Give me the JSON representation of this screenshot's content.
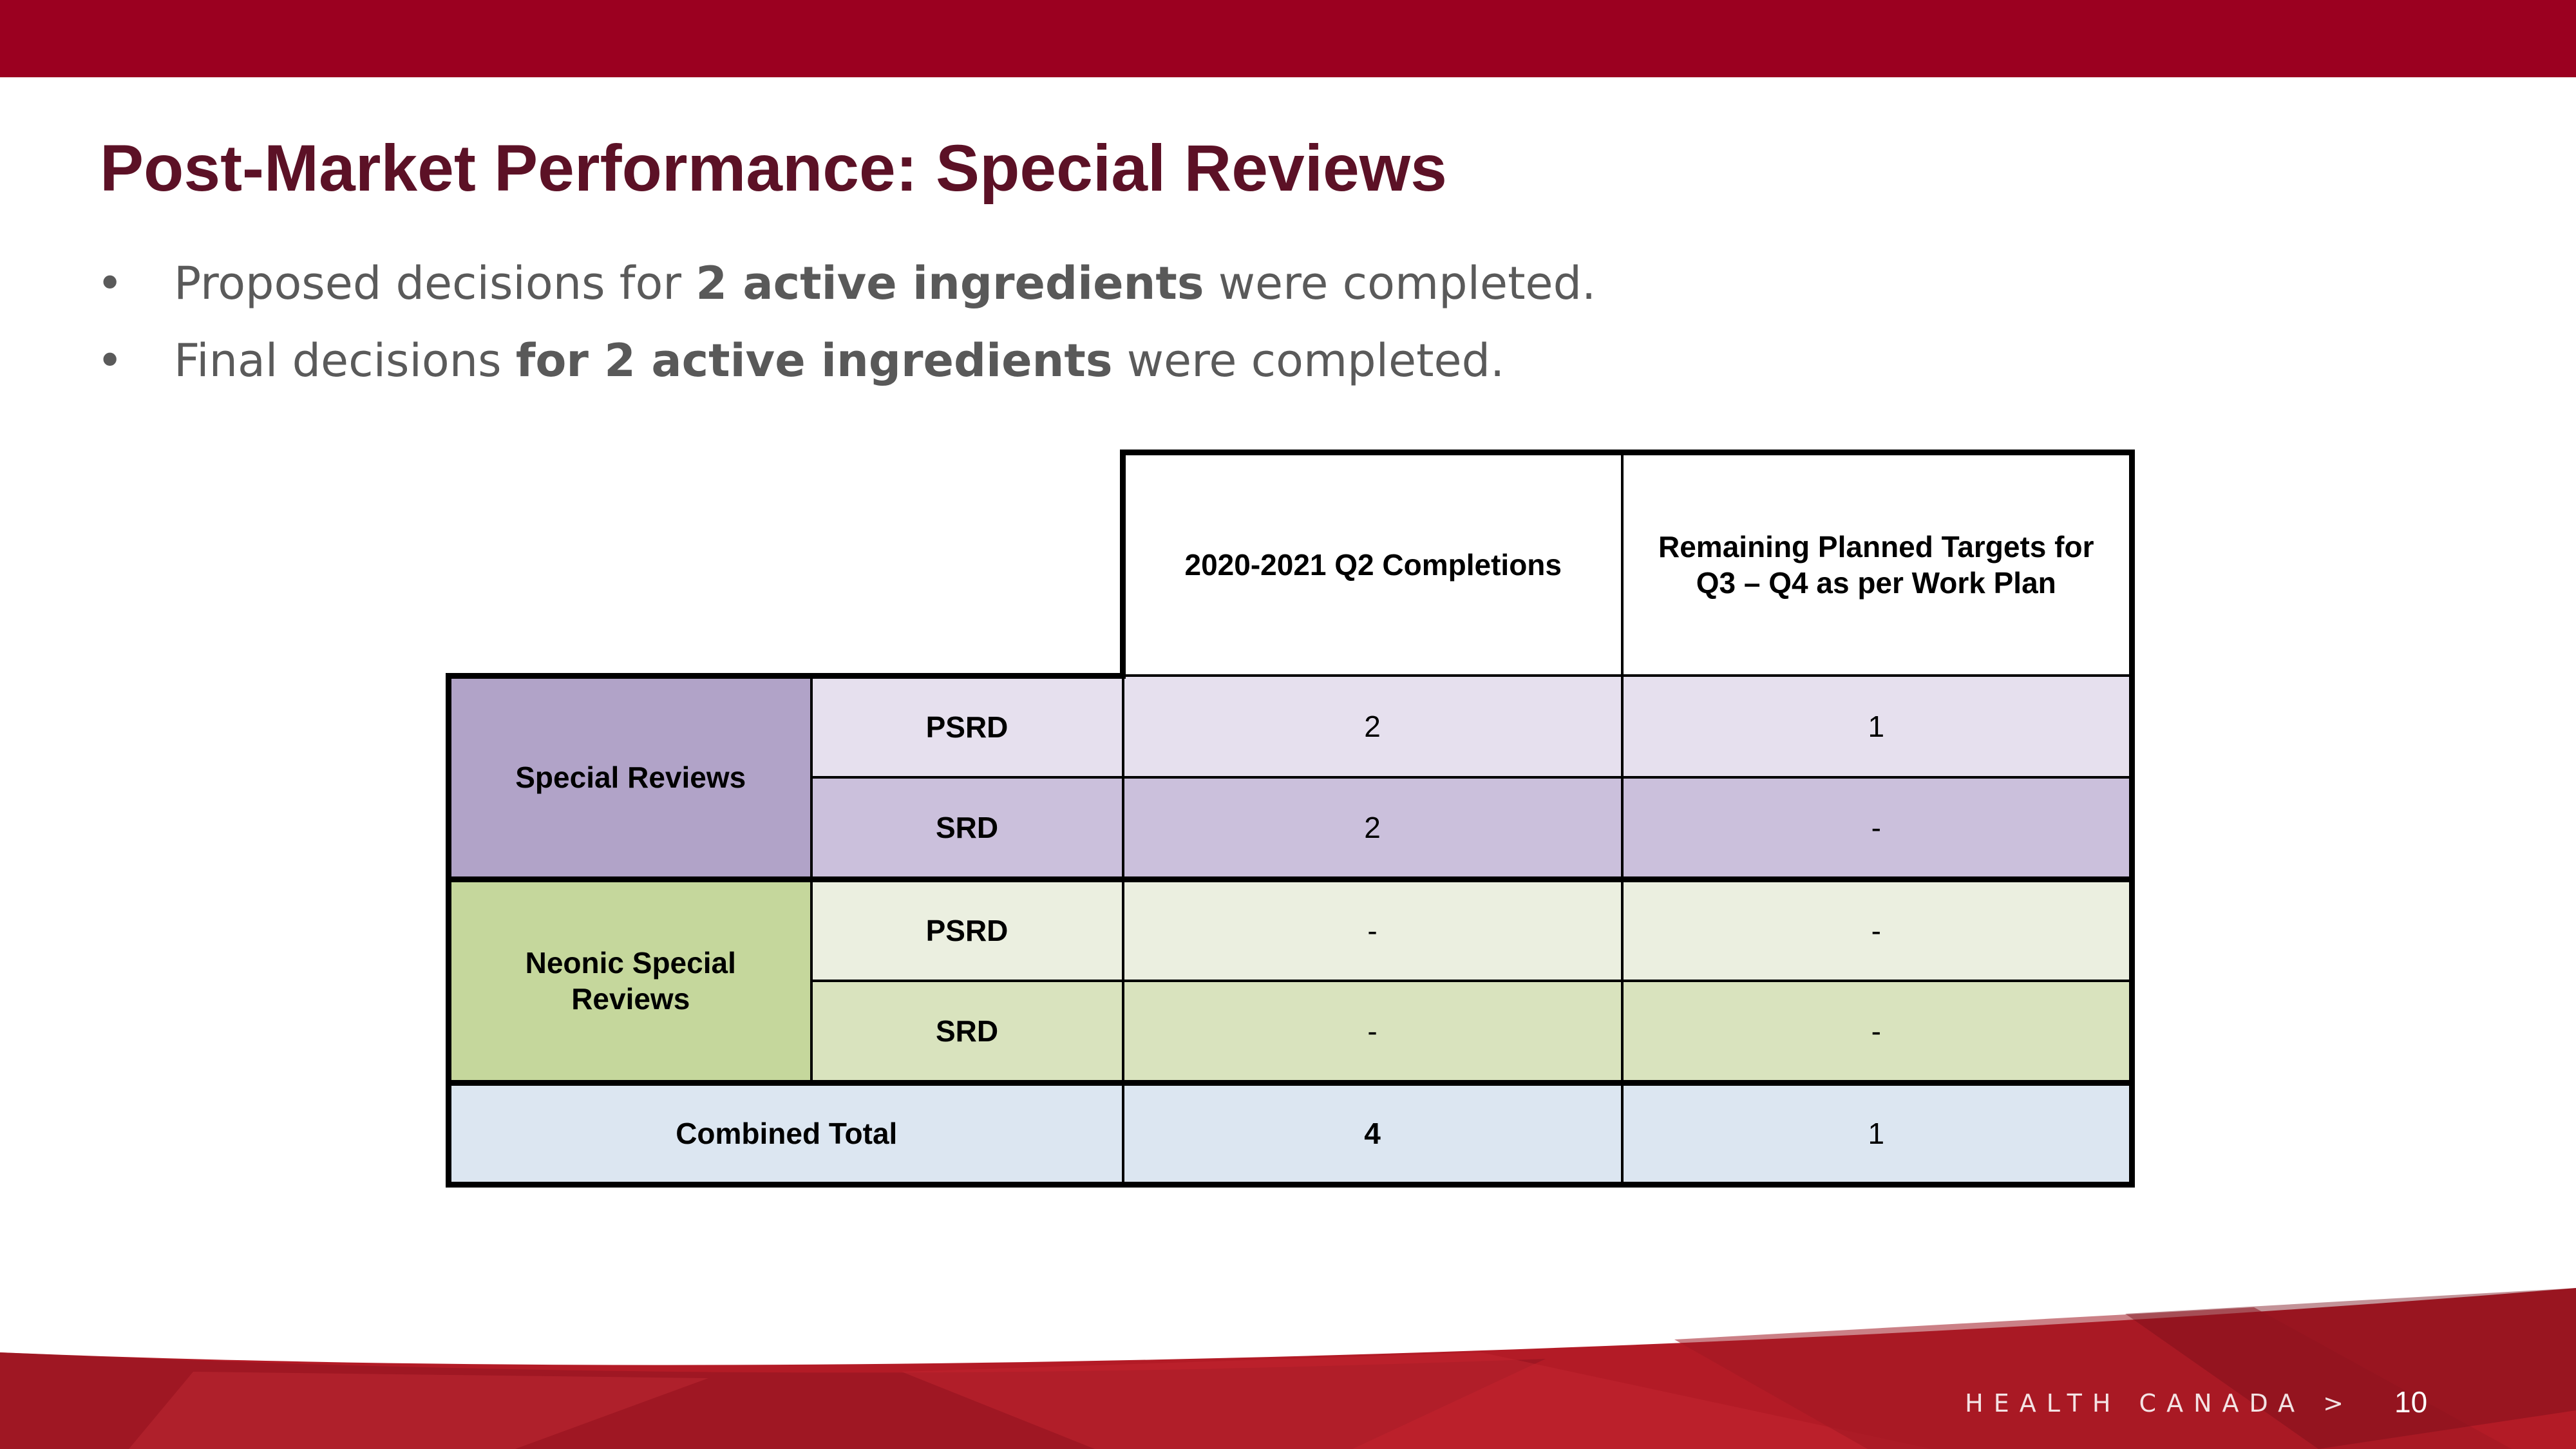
{
  "slide": {
    "title": "Post-Market Performance: Special Reviews",
    "bullets": [
      {
        "marker": "•",
        "pre": "Proposed decisions for ",
        "bold": "2 active ingredients",
        "post": " were completed."
      },
      {
        "marker": "•",
        "pre": "Final decisions ",
        "bold": "for 2 active ingredients",
        "post": " were completed."
      }
    ],
    "footer": "HEALTH CANADA >",
    "page_number": "10"
  },
  "table": {
    "columns": [
      "2020-2021 Q2 Completions",
      "Remaining Planned Targets for Q3 – Q4  as per Work Plan"
    ],
    "groups": [
      {
        "label": "Special Reviews",
        "rows": [
          {
            "label": "PSRD",
            "values": [
              "2",
              "1"
            ]
          },
          {
            "label": "SRD",
            "values": [
              "2",
              "-"
            ]
          }
        ]
      },
      {
        "label": "Neonic Special Reviews",
        "rows": [
          {
            "label": "PSRD",
            "values": [
              "-",
              "-"
            ]
          },
          {
            "label": "SRD",
            "values": [
              "-",
              "-"
            ]
          }
        ]
      }
    ],
    "total": {
      "label": "Combined Total",
      "values": [
        "4",
        "1"
      ]
    }
  },
  "colors": {
    "brand_red": "#9b0020",
    "title_color": "#5c1126",
    "special_reviews_group": "#b1a3c8",
    "neonic_group": "#c5d79c",
    "total_row": "#dce6f1"
  }
}
